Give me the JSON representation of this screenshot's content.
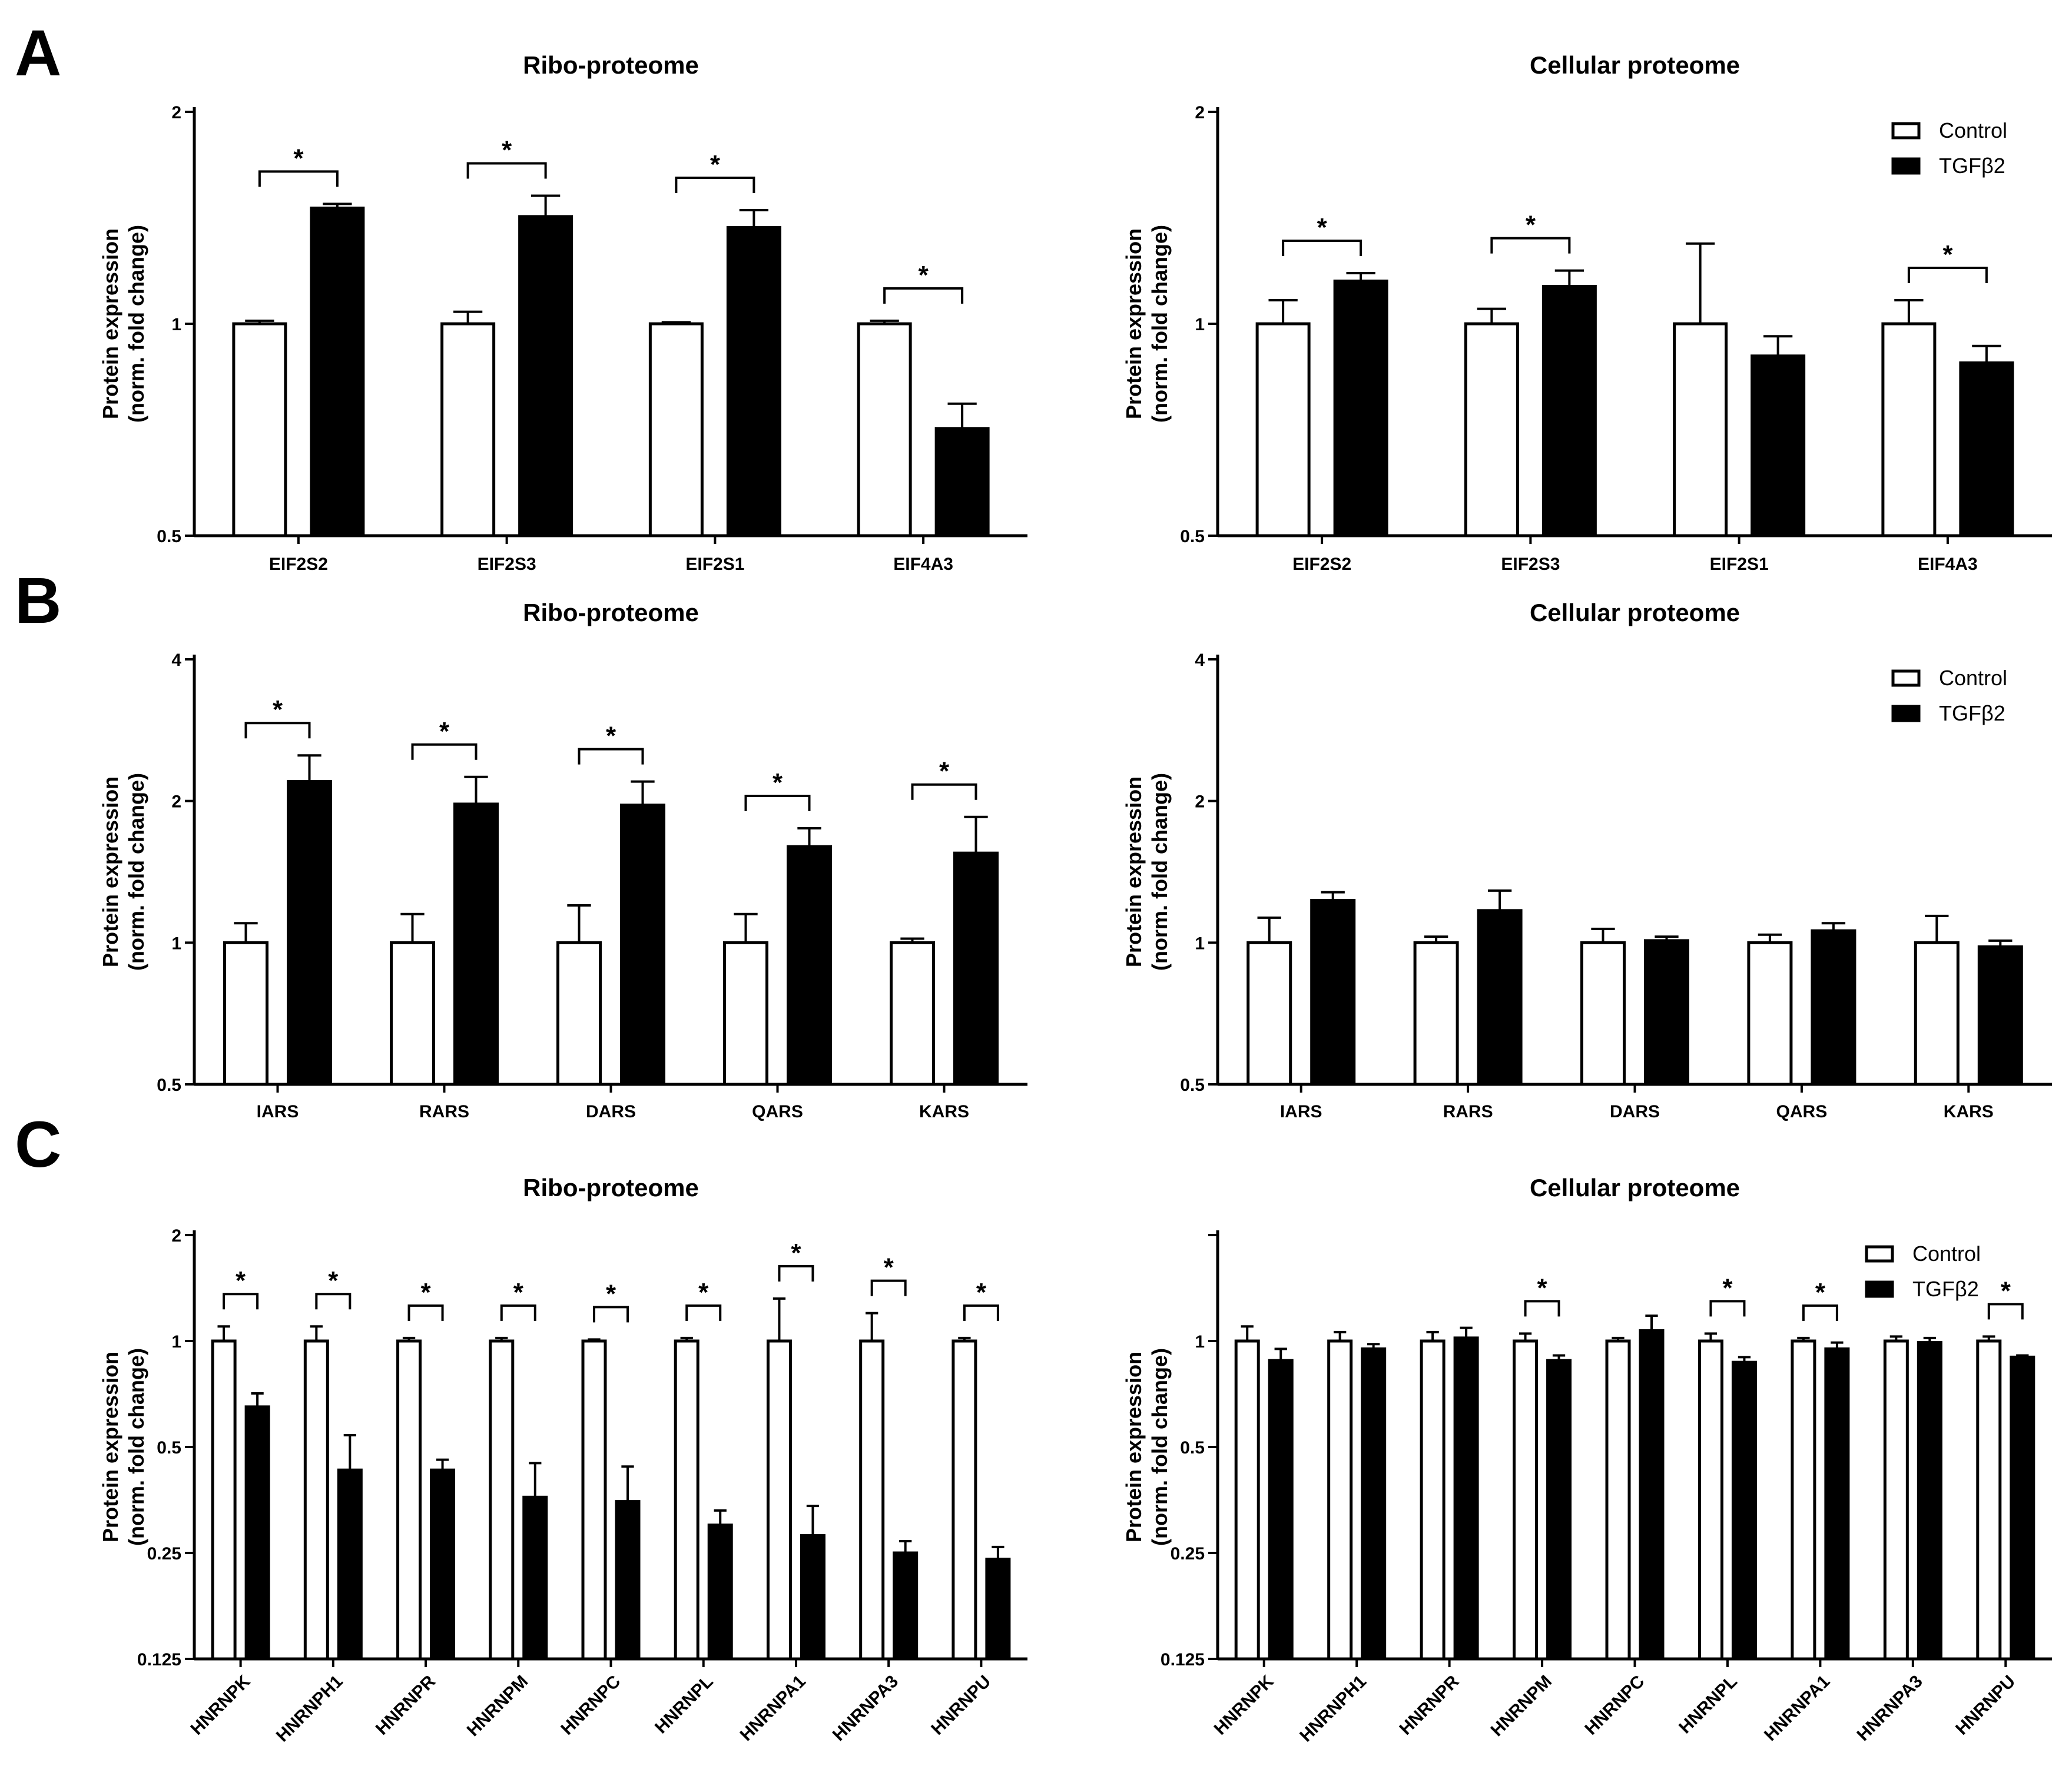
{
  "figure": {
    "panel_labels": [
      "A",
      "B",
      "C"
    ],
    "legend": {
      "control": "Control",
      "treatment": "TGFβ2"
    },
    "colors": {
      "control_fill": "#ffffff",
      "treatment_fill": "#000000",
      "axis": "#000000"
    }
  },
  "chart_data": [
    {
      "panel": "A",
      "side": "left",
      "type": "bar",
      "title": "Ribo-proteome",
      "ylabel": [
        "Protein expression",
        "(norm. fold change)"
      ],
      "yscale": "log2",
      "ylim": [
        0.5,
        2
      ],
      "yticks": [
        0.5,
        1,
        2
      ],
      "ytick_labels": [
        "0.5",
        "1",
        "2"
      ],
      "categories": [
        "EIF2S2",
        "EIF2S3",
        "EIF2S1",
        "EIF4A3"
      ],
      "series": [
        {
          "name": "Control",
          "values": [
            1.0,
            1.0,
            1.0,
            1.0
          ],
          "errors": [
            1.01,
            1.04,
            1.005,
            1.01
          ]
        },
        {
          "name": "TGFβ2",
          "values": [
            1.46,
            1.42,
            1.37,
            0.71
          ],
          "errors": [
            1.48,
            1.52,
            1.45,
            0.77
          ]
        }
      ],
      "significance": [
        {
          "category": "EIF2S2",
          "label": "*"
        },
        {
          "category": "EIF2S3",
          "label": "*"
        },
        {
          "category": "EIF2S1",
          "label": "*"
        },
        {
          "category": "EIF4A3",
          "label": "*"
        }
      ]
    },
    {
      "panel": "A",
      "side": "right",
      "type": "bar",
      "title": "Cellular proteome",
      "ylabel": [
        "Protein expression",
        "(norm. fold change)"
      ],
      "yscale": "log2",
      "ylim": [
        0.5,
        2
      ],
      "yticks": [
        0.5,
        1,
        2
      ],
      "ytick_labels": [
        "0.5",
        "1",
        "2"
      ],
      "categories": [
        "EIF2S2",
        "EIF2S3",
        "EIF2S1",
        "EIF4A3"
      ],
      "legend": true,
      "series": [
        {
          "name": "Control",
          "values": [
            1.0,
            1.0,
            1.0,
            1.0
          ],
          "errors": [
            1.08,
            1.05,
            1.3,
            1.08
          ]
        },
        {
          "name": "TGFβ2",
          "values": [
            1.15,
            1.13,
            0.9,
            0.88
          ],
          "errors": [
            1.18,
            1.19,
            0.96,
            0.93
          ]
        }
      ],
      "significance": [
        {
          "category": "EIF2S2",
          "label": "*"
        },
        {
          "category": "EIF2S3",
          "label": "*"
        },
        {
          "category": "EIF4A3",
          "label": "*"
        }
      ]
    },
    {
      "panel": "B",
      "side": "left",
      "type": "bar",
      "title": "Ribo-proteome",
      "ylabel": [
        "Protein expression",
        "(norm. fold change)"
      ],
      "yscale": "log2",
      "ylim": [
        0.5,
        4
      ],
      "yticks": [
        0.5,
        1,
        2,
        4
      ],
      "ytick_labels": [
        "0.5",
        "1",
        "2",
        "4"
      ],
      "categories": [
        "IARS",
        "RARS",
        "DARS",
        "QARS",
        "KARS"
      ],
      "series": [
        {
          "name": "Control",
          "values": [
            1.0,
            1.0,
            1.0,
            1.0,
            1.0
          ],
          "errors": [
            1.1,
            1.15,
            1.2,
            1.15,
            1.02
          ]
        },
        {
          "name": "TGFβ2",
          "values": [
            2.2,
            1.97,
            1.96,
            1.6,
            1.55
          ],
          "errors": [
            2.5,
            2.25,
            2.2,
            1.75,
            1.85
          ]
        }
      ],
      "significance": [
        {
          "category": "IARS",
          "label": "*"
        },
        {
          "category": "RARS",
          "label": "*"
        },
        {
          "category": "DARS",
          "label": "*"
        },
        {
          "category": "QARS",
          "label": "*"
        },
        {
          "category": "KARS",
          "label": "*"
        }
      ]
    },
    {
      "panel": "B",
      "side": "right",
      "type": "bar",
      "title": "Cellular proteome",
      "ylabel": [
        "Protein expression",
        "(norm. fold change)"
      ],
      "yscale": "log2",
      "ylim": [
        0.5,
        4
      ],
      "yticks": [
        0.5,
        1,
        2,
        4
      ],
      "ytick_labels": [
        "0.5",
        "1",
        "2",
        "4"
      ],
      "categories": [
        "IARS",
        "RARS",
        "DARS",
        "QARS",
        "KARS"
      ],
      "legend": true,
      "series": [
        {
          "name": "Control",
          "values": [
            1.0,
            1.0,
            1.0,
            1.0,
            1.0
          ],
          "errors": [
            1.13,
            1.03,
            1.07,
            1.04,
            1.14
          ]
        },
        {
          "name": "TGFβ2",
          "values": [
            1.23,
            1.17,
            1.01,
            1.06,
            0.98
          ],
          "errors": [
            1.28,
            1.29,
            1.03,
            1.1,
            1.01
          ]
        }
      ],
      "significance": []
    },
    {
      "panel": "C",
      "side": "left",
      "type": "bar",
      "title": "Ribo-proteome",
      "ylabel": [
        "Protein expression",
        "(norm. fold change)"
      ],
      "yscale": "log2",
      "ylim": [
        0.125,
        2
      ],
      "yticks": [
        0.125,
        0.25,
        0.5,
        1,
        2
      ],
      "ytick_labels": [
        "0.125",
        "0.25",
        "0.5",
        "1",
        "2"
      ],
      "categories": [
        "HNRNPK",
        "HNRNPH1",
        "HNRNPR",
        "HNRNPM",
        "HNRNPC",
        "HNRNPL",
        "HNRNPA1",
        "HNRNPA3",
        "HNRNPU"
      ],
      "series": [
        {
          "name": "Control",
          "values": [
            1,
            1,
            1,
            1,
            1,
            1,
            1,
            1,
            1
          ],
          "errors": [
            1.1,
            1.1,
            1.02,
            1.02,
            1.01,
            1.02,
            1.32,
            1.2,
            1.02
          ]
        },
        {
          "name": "TGFβ2",
          "values": [
            0.65,
            0.43,
            0.43,
            0.36,
            0.35,
            0.3,
            0.28,
            0.25,
            0.24
          ],
          "errors": [
            0.71,
            0.54,
            0.46,
            0.45,
            0.44,
            0.33,
            0.34,
            0.27,
            0.26
          ]
        }
      ],
      "significance": [
        {
          "category": "HNRNPK",
          "label": "*"
        },
        {
          "category": "HNRNPH1",
          "label": "*"
        },
        {
          "category": "HNRNPR",
          "label": "*"
        },
        {
          "category": "HNRNPM",
          "label": "*"
        },
        {
          "category": "HNRNPC",
          "label": "*"
        },
        {
          "category": "HNRNPL",
          "label": "*"
        },
        {
          "category": "HNRNPA1",
          "label": "*"
        },
        {
          "category": "HNRNPA3",
          "label": "*"
        },
        {
          "category": "HNRNPU",
          "label": "*"
        }
      ]
    },
    {
      "panel": "C",
      "side": "right",
      "type": "bar",
      "title": "Cellular proteome",
      "ylabel": [
        "Protein expression",
        "(norm. fold change)"
      ],
      "yscale": "log2",
      "ylim": [
        0.125,
        2
      ],
      "yticks": [
        0.125,
        0.25,
        0.5,
        1,
        2
      ],
      "ytick_labels": [
        "0.125",
        "0.25",
        "0.5",
        "1",
        ""
      ],
      "categories": [
        "HNRNPK",
        "HNRNPH1",
        "HNRNPR",
        "HNRNPM",
        "HNRNPC",
        "HNRNPL",
        "HNRNPA1",
        "HNRNPA3",
        "HNRNPU"
      ],
      "legend": true,
      "series": [
        {
          "name": "Control",
          "values": [
            1,
            1,
            1,
            1,
            1,
            1,
            1,
            1,
            1
          ],
          "errors": [
            1.1,
            1.06,
            1.06,
            1.05,
            1.02,
            1.05,
            1.02,
            1.03,
            1.03
          ]
        },
        {
          "name": "TGFβ2",
          "values": [
            0.88,
            0.95,
            1.02,
            0.88,
            1.07,
            0.87,
            0.95,
            0.99,
            0.9
          ],
          "errors": [
            0.95,
            0.98,
            1.09,
            0.91,
            1.18,
            0.9,
            0.99,
            1.02,
            0.91
          ]
        }
      ],
      "significance": [
        {
          "category": "HNRNPM",
          "label": "*"
        },
        {
          "category": "HNRNPL",
          "label": "*"
        },
        {
          "category": "HNRNPA1",
          "label": "*"
        },
        {
          "category": "HNRNPU",
          "label": "*"
        }
      ]
    }
  ]
}
